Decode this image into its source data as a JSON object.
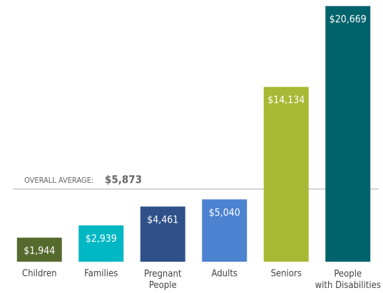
{
  "chart_data": {
    "type": "bar",
    "categories": [
      "Children",
      "Families",
      "Pregnant\nPeople",
      "Adults",
      "Seniors",
      "People\nwith Disabilities"
    ],
    "values": [
      1944,
      2939,
      4461,
      5040,
      14134,
      20669
    ],
    "value_labels": [
      "$1,944",
      "$2,939",
      "$4,461",
      "$5,040",
      "$14,134",
      "$20,669"
    ],
    "colors": [
      "#566a2e",
      "#00b7c4",
      "#2f5089",
      "#4c82d0",
      "#a7b935",
      "#00636b"
    ],
    "ylim": [
      0,
      20700
    ],
    "average": {
      "label": "OVERALL AVERAGE:",
      "value": 5873,
      "value_label": "$5,873"
    }
  }
}
